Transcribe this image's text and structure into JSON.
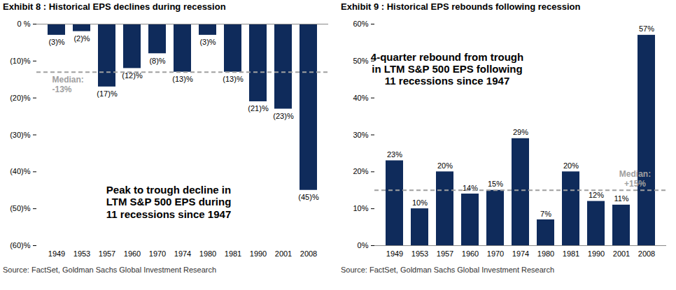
{
  "chart_data": [
    {
      "type": "bar",
      "title": "Exhibit 8 : Historical EPS declines during recession",
      "annotation": [
        "Peak to trough decline in",
        "LTM S&P 500 EPS during",
        "11 recessions since 1947"
      ],
      "categories": [
        "1949",
        "1953",
        "1957",
        "1960",
        "1970",
        "1974",
        "1980",
        "1981",
        "1990",
        "2001",
        "2008"
      ],
      "values": [
        -3,
        -2,
        -17,
        -12,
        -8,
        -13,
        -3,
        -13,
        -21,
        -23,
        -45
      ],
      "value_labels": [
        "(3)%",
        "(2)%",
        "(17)%",
        "(12)%",
        "(8)%",
        "(13)%",
        "(3)%",
        "(13)%",
        "(21)%",
        "(23)%",
        "(45)%"
      ],
      "data_labels": true,
      "color": "#0f2b5b",
      "ylim": [
        -60,
        0
      ],
      "yticks": [
        {
          "value": -60,
          "label": "(60)%"
        },
        {
          "value": -50,
          "label": "(50)%"
        },
        {
          "value": -40,
          "label": "(40)%"
        },
        {
          "value": -30,
          "label": "(30)%"
        },
        {
          "value": -20,
          "label": "(20)%"
        },
        {
          "value": -10,
          "label": "(10)%"
        },
        {
          "value": 0,
          "label": "0 %"
        }
      ],
      "reference_line": {
        "value": -13,
        "label": [
          "Median:",
          "-13%"
        ]
      },
      "source": "Source: FactSet, Goldman Sachs Global Investment Research"
    },
    {
      "type": "bar",
      "title": "Exhibit 9 : Historical EPS rebounds following recession",
      "annotation": [
        "4-quarter rebound from trough",
        "in LTM S&P 500 EPS following",
        "11 recessions since 1947"
      ],
      "categories": [
        "1949",
        "1953",
        "1957",
        "1960",
        "1970",
        "1974",
        "1980",
        "1981",
        "1990",
        "2001",
        "2008"
      ],
      "values": [
        23,
        10,
        20,
        14,
        15,
        29,
        7,
        20,
        12,
        11,
        57
      ],
      "value_labels": [
        "23%",
        "10%",
        "20%",
        "14%",
        "15%",
        "29%",
        "7%",
        "20%",
        "12%",
        "11%",
        "57%"
      ],
      "data_labels": true,
      "color": "#0f2b5b",
      "ylim": [
        0,
        60
      ],
      "yticks": [
        {
          "value": 0,
          "label": "0%"
        },
        {
          "value": 10,
          "label": "10%"
        },
        {
          "value": 20,
          "label": "20%"
        },
        {
          "value": 30,
          "label": "30%"
        },
        {
          "value": 40,
          "label": "40%"
        },
        {
          "value": 50,
          "label": "50%"
        },
        {
          "value": 60,
          "label": "60%"
        }
      ],
      "reference_line": {
        "value": 15,
        "label": [
          "Median:",
          "+15%"
        ]
      },
      "source": "Source: FactSet, Goldman Sachs Global Investment Research"
    }
  ]
}
